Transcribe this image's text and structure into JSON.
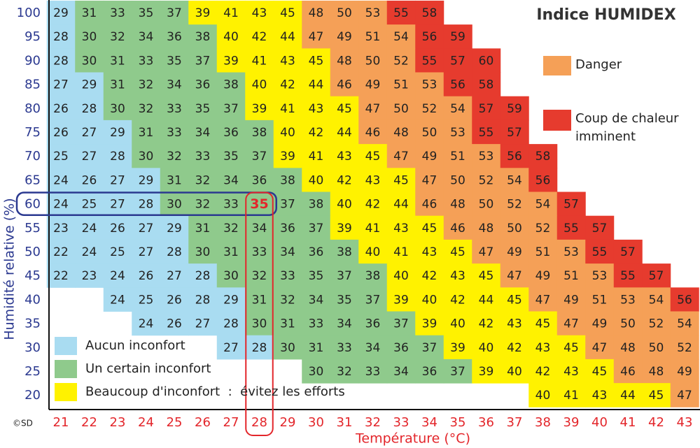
{
  "chart_data": {
    "type": "heatmap",
    "title": "Indice HUMIDEX",
    "y_label": "Humidité relative (%)",
    "x_label": "Température (°C)",
    "credit": "©SD",
    "x": [
      21,
      22,
      23,
      24,
      25,
      26,
      27,
      28,
      29,
      30,
      31,
      32,
      33,
      34,
      35,
      36,
      37,
      38,
      39,
      40,
      41,
      42,
      43
    ],
    "y": [
      100,
      95,
      90,
      85,
      80,
      75,
      70,
      65,
      60,
      55,
      50,
      45,
      40,
      35,
      30,
      25,
      20
    ],
    "values": [
      [
        29,
        31,
        33,
        35,
        37,
        39,
        41,
        43,
        45,
        48,
        50,
        53,
        55,
        58,
        null,
        null,
        null,
        null,
        null,
        null,
        null,
        null,
        null
      ],
      [
        28,
        30,
        32,
        34,
        36,
        38,
        40,
        42,
        44,
        47,
        49,
        51,
        54,
        56,
        59,
        null,
        null,
        null,
        null,
        null,
        null,
        null,
        null
      ],
      [
        28,
        30,
        31,
        33,
        35,
        37,
        39,
        41,
        43,
        45,
        48,
        50,
        52,
        55,
        57,
        60,
        null,
        null,
        null,
        null,
        null,
        null,
        null
      ],
      [
        27,
        29,
        31,
        32,
        34,
        36,
        38,
        40,
        42,
        44,
        46,
        49,
        51,
        53,
        56,
        58,
        null,
        null,
        null,
        null,
        null,
        null,
        null
      ],
      [
        26,
        28,
        30,
        32,
        33,
        35,
        37,
        39,
        41,
        43,
        45,
        47,
        50,
        52,
        54,
        57,
        59,
        null,
        null,
        null,
        null,
        null,
        null
      ],
      [
        26,
        27,
        29,
        31,
        33,
        34,
        36,
        38,
        40,
        42,
        44,
        46,
        48,
        50,
        53,
        55,
        57,
        null,
        null,
        null,
        null,
        null,
        null
      ],
      [
        25,
        27,
        28,
        30,
        32,
        33,
        35,
        37,
        39,
        41,
        43,
        45,
        47,
        49,
        51,
        53,
        56,
        58,
        null,
        null,
        null,
        null,
        null
      ],
      [
        24,
        26,
        27,
        29,
        31,
        32,
        34,
        36,
        38,
        40,
        42,
        43,
        45,
        47,
        50,
        52,
        54,
        56,
        null,
        null,
        null,
        null,
        null
      ],
      [
        24,
        25,
        27,
        28,
        30,
        32,
        33,
        35,
        37,
        38,
        40,
        42,
        44,
        46,
        48,
        50,
        52,
        54,
        57,
        null,
        null,
        null,
        null
      ],
      [
        23,
        24,
        26,
        27,
        29,
        31,
        32,
        34,
        36,
        37,
        39,
        41,
        43,
        45,
        46,
        48,
        50,
        52,
        55,
        57,
        null,
        null,
        null
      ],
      [
        22,
        24,
        25,
        27,
        28,
        30,
        31,
        33,
        34,
        36,
        38,
        40,
        41,
        43,
        45,
        47,
        49,
        51,
        53,
        55,
        57,
        null,
        null
      ],
      [
        22,
        23,
        24,
        26,
        27,
        28,
        30,
        32,
        33,
        35,
        37,
        38,
        40,
        42,
        43,
        45,
        47,
        49,
        51,
        53,
        55,
        57,
        null
      ],
      [
        null,
        null,
        24,
        25,
        26,
        28,
        29,
        31,
        32,
        34,
        35,
        37,
        39,
        40,
        42,
        44,
        45,
        47,
        49,
        51,
        53,
        54,
        56
      ],
      [
        null,
        null,
        null,
        24,
        26,
        27,
        28,
        30,
        31,
        33,
        34,
        36,
        37,
        39,
        40,
        42,
        43,
        45,
        47,
        49,
        50,
        52,
        54
      ],
      [
        null,
        null,
        null,
        null,
        null,
        null,
        27,
        28,
        30,
        31,
        33,
        34,
        36,
        37,
        39,
        40,
        42,
        43,
        45,
        47,
        48,
        50,
        52
      ],
      [
        null,
        null,
        null,
        null,
        null,
        null,
        null,
        null,
        null,
        30,
        32,
        33,
        34,
        36,
        37,
        39,
        40,
        42,
        43,
        45,
        46,
        48,
        49
      ],
      [
        null,
        null,
        null,
        null,
        null,
        null,
        null,
        null,
        null,
        null,
        null,
        null,
        null,
        null,
        null,
        null,
        null,
        40,
        41,
        43,
        44,
        45,
        47
      ]
    ],
    "legend": [
      {
        "label": "Aucun inconfort",
        "color": "#a9dcf1",
        "max": 29
      },
      {
        "label": "Un certain inconfort",
        "color": "#8fca8c",
        "max": 38
      },
      {
        "label": "Beaucoup d'inconfort  :  évitez les efforts",
        "color": "#fff200",
        "max": 45
      },
      {
        "label": "Danger",
        "color": "#f5a057",
        "max": 54
      },
      {
        "label": "Coup de chaleur imminent",
        "color": "#e63b2e"
      }
    ],
    "highlight": {
      "humidity": 60,
      "temperature": 28
    }
  }
}
